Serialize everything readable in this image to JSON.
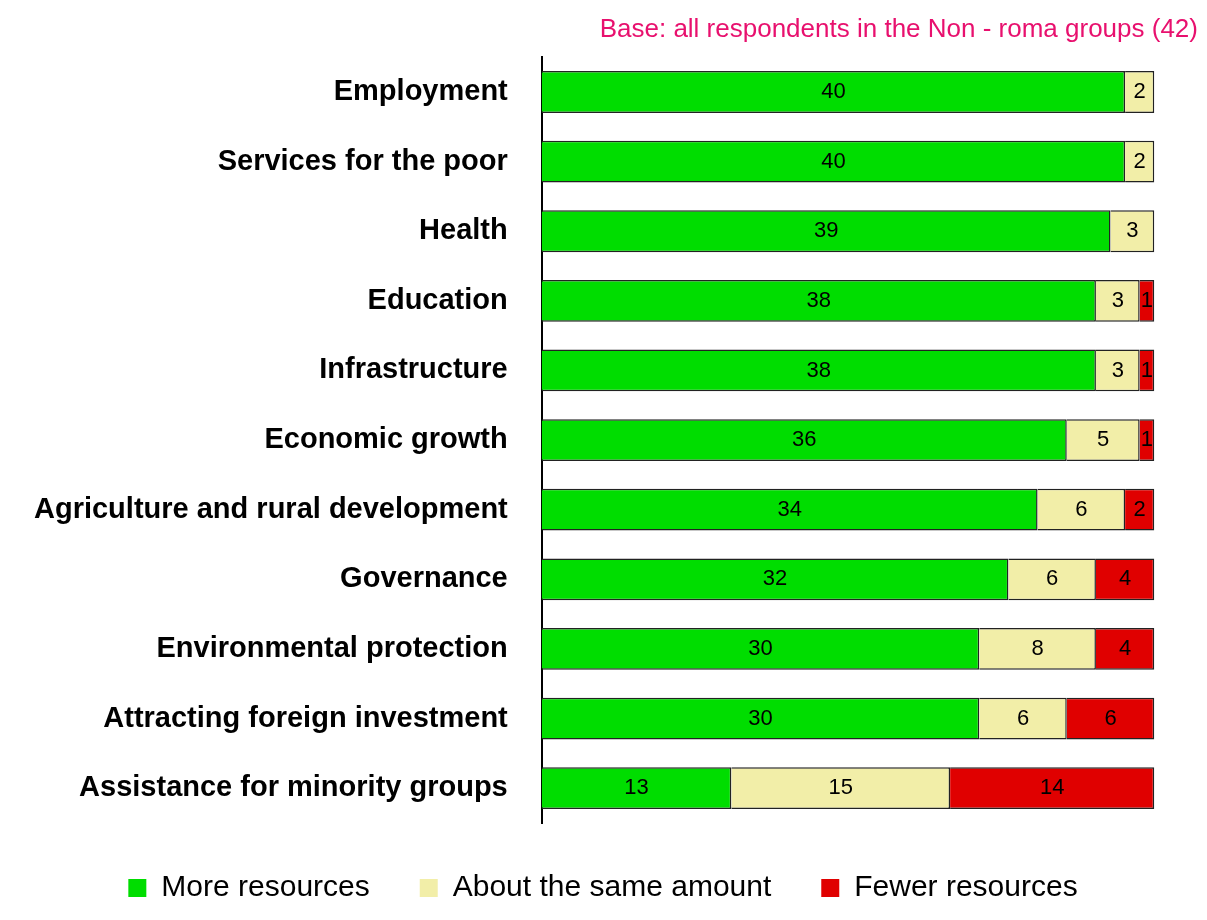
{
  "chart_data": {
    "type": "bar",
    "orientation": "horizontal",
    "stacked": true,
    "title": "Base: all respondents in the Non - roma groups (42)",
    "categories": [
      "Employment",
      "Services for the poor",
      "Health",
      "Education",
      "Infrastructure",
      "Economic growth",
      "Agriculture and rural development",
      "Governance",
      "Environmental protection",
      "Attracting foreign investment",
      "Assistance for minority groups"
    ],
    "series": [
      {
        "name": "More resources",
        "color": "#00dd00",
        "values": [
          40,
          40,
          39,
          38,
          38,
          36,
          34,
          32,
          30,
          30,
          13
        ]
      },
      {
        "name": "About the same amount",
        "color": "#f2eea8",
        "values": [
          2,
          2,
          3,
          3,
          3,
          5,
          6,
          6,
          8,
          6,
          15
        ]
      },
      {
        "name": "Fewer resources",
        "color": "#e00000",
        "values": [
          null,
          null,
          null,
          1,
          1,
          1,
          2,
          4,
          4,
          6,
          14
        ]
      }
    ],
    "data_labels": true,
    "legend": "bottom",
    "grid": false
  }
}
